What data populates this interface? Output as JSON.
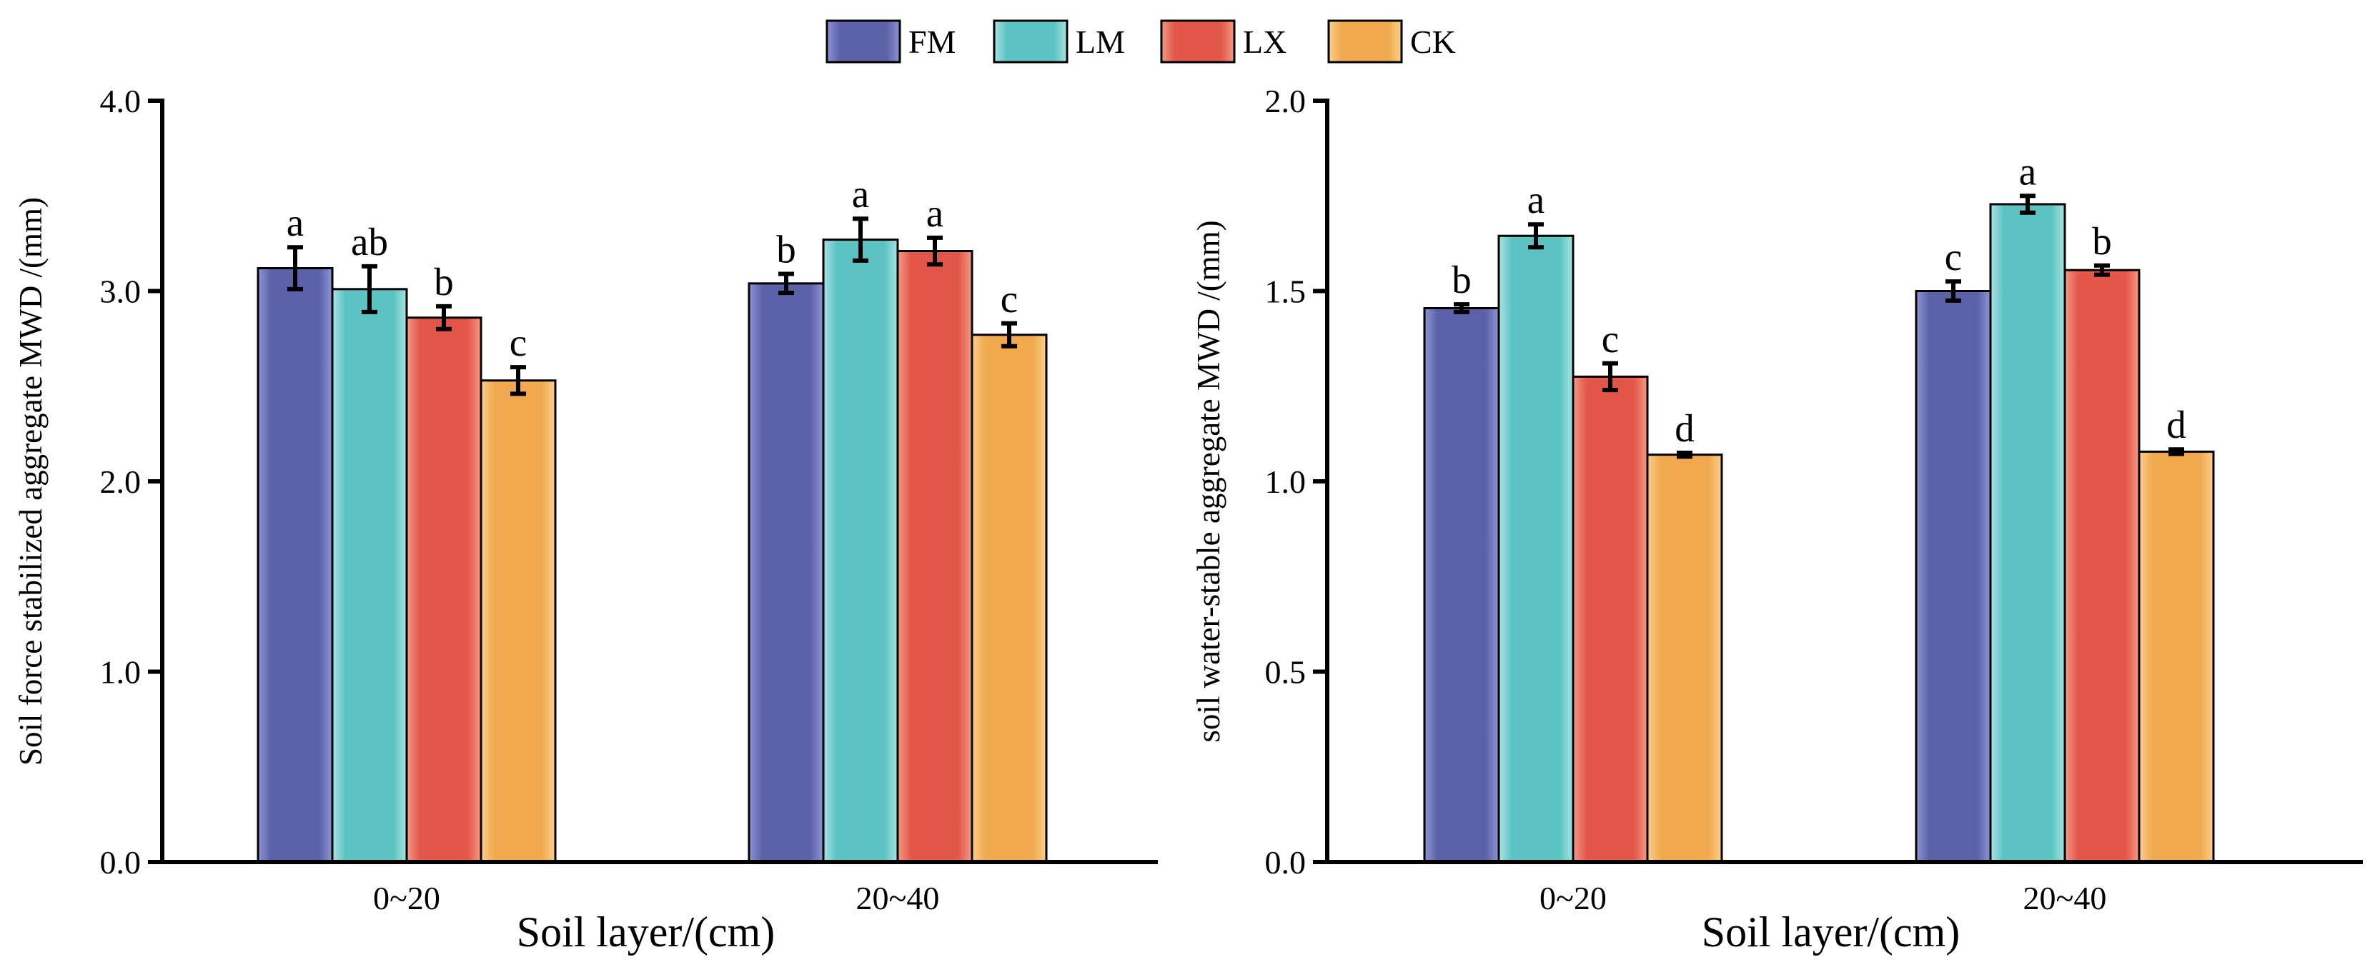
{
  "legend": {
    "items": [
      {
        "key": "FM",
        "label": "FM",
        "color": "#5c61a8",
        "edge": "#8f94d4"
      },
      {
        "key": "LM",
        "label": "LM",
        "color": "#5cc2c2",
        "edge": "#a8e4e4"
      },
      {
        "key": "LX",
        "label": "LX",
        "color": "#e2574a",
        "edge": "#f39a86"
      },
      {
        "key": "CK",
        "label": "CK",
        "color": "#f0a94e",
        "edge": "#fcd08c"
      }
    ]
  },
  "chart_data": [
    {
      "type": "bar",
      "title": "",
      "xlabel": "Soil layer/(cm)",
      "ylabel": "Soil force stabilized aggregate MWD /(mm)",
      "ylim": [
        0,
        4.0
      ],
      "yticks": [
        0,
        1,
        2,
        3,
        4
      ],
      "ytick_labels": [
        "0.0",
        "1.0",
        "2.0",
        "3.0",
        "4.0"
      ],
      "categories": [
        "0~20",
        "20~40"
      ],
      "series": [
        {
          "name": "FM",
          "values": [
            3.12,
            3.04
          ],
          "errors": [
            0.11,
            0.05
          ],
          "letters": [
            "a",
            "b"
          ]
        },
        {
          "name": "LM",
          "values": [
            3.01,
            3.27
          ],
          "errors": [
            0.12,
            0.11
          ],
          "letters": [
            "ab",
            "a"
          ]
        },
        {
          "name": "LX",
          "values": [
            2.86,
            3.21
          ],
          "errors": [
            0.06,
            0.07
          ],
          "letters": [
            "b",
            "a"
          ]
        },
        {
          "name": "CK",
          "values": [
            2.53,
            2.77
          ],
          "errors": [
            0.07,
            0.06
          ],
          "letters": [
            "c",
            "c"
          ]
        }
      ]
    },
    {
      "type": "bar",
      "title": "",
      "xlabel": "Soil layer/(cm)",
      "ylabel": "soil water-stable aggregate MWD /(mm)",
      "ylim": [
        0,
        2.0
      ],
      "yticks": [
        0,
        0.5,
        1.0,
        1.5,
        2.0
      ],
      "ytick_labels": [
        "0.0",
        "0.5",
        "1.0",
        "1.5",
        "2.0"
      ],
      "categories": [
        "0~20",
        "20~40"
      ],
      "series": [
        {
          "name": "FM",
          "values": [
            1.455,
            1.5
          ],
          "errors": [
            0.01,
            0.025
          ],
          "letters": [
            "b",
            "c"
          ]
        },
        {
          "name": "LM",
          "values": [
            1.645,
            1.728
          ],
          "errors": [
            0.03,
            0.022
          ],
          "letters": [
            "a",
            "a"
          ]
        },
        {
          "name": "LX",
          "values": [
            1.275,
            1.555
          ],
          "errors": [
            0.035,
            0.012
          ],
          "letters": [
            "c",
            "b"
          ]
        },
        {
          "name": "CK",
          "values": [
            1.07,
            1.078
          ],
          "errors": [
            0.005,
            0.006
          ],
          "letters": [
            "d",
            "d"
          ]
        }
      ]
    }
  ]
}
